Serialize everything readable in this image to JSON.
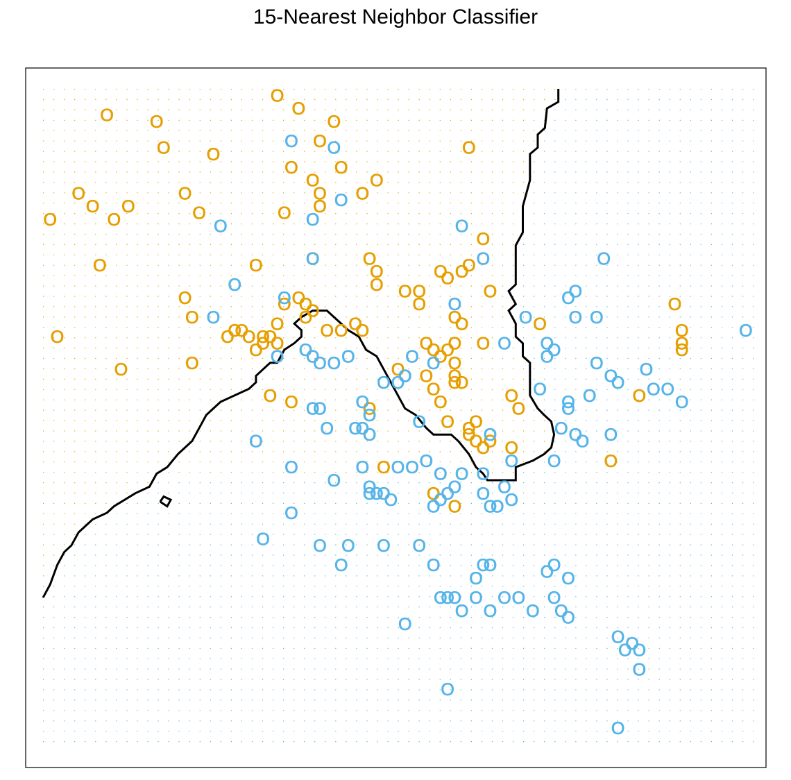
{
  "chart_data": {
    "type": "scatter",
    "title": "15-Nearest Neighbor Classifier",
    "xlabel": "",
    "ylabel": "",
    "axes_shown": false,
    "xlim": [
      0,
      1
    ],
    "ylim": [
      0,
      1
    ],
    "marker": "O",
    "colors": {
      "orange": "#E69F00",
      "blue": "#56B4E9",
      "boundary": "#000000",
      "frame": "#000000"
    },
    "background_grid": {
      "description": "dotted grid colored by predicted class",
      "nx": 69,
      "ny": 64
    },
    "decision_boundary": [
      [
        0.726,
        1.0
      ],
      [
        0.726,
        0.98
      ],
      [
        0.71,
        0.97
      ],
      [
        0.707,
        0.94
      ],
      [
        0.697,
        0.93
      ],
      [
        0.697,
        0.91
      ],
      [
        0.686,
        0.9
      ],
      [
        0.686,
        0.86
      ],
      [
        0.676,
        0.82
      ],
      [
        0.676,
        0.78
      ],
      [
        0.666,
        0.76
      ],
      [
        0.666,
        0.7
      ],
      [
        0.656,
        0.69
      ],
      [
        0.666,
        0.67
      ],
      [
        0.656,
        0.66
      ],
      [
        0.666,
        0.64
      ],
      [
        0.666,
        0.62
      ],
      [
        0.676,
        0.61
      ],
      [
        0.676,
        0.59
      ],
      [
        0.686,
        0.58
      ],
      [
        0.686,
        0.53
      ],
      [
        0.697,
        0.51
      ],
      [
        0.706,
        0.5
      ],
      [
        0.716,
        0.49
      ],
      [
        0.72,
        0.47
      ],
      [
        0.716,
        0.45
      ],
      [
        0.706,
        0.44
      ],
      [
        0.69,
        0.43
      ],
      [
        0.666,
        0.42
      ],
      [
        0.666,
        0.4
      ],
      [
        0.626,
        0.4
      ],
      [
        0.62,
        0.41
      ],
      [
        0.61,
        0.42
      ],
      [
        0.6,
        0.44
      ],
      [
        0.585,
        0.46
      ],
      [
        0.575,
        0.47
      ],
      [
        0.55,
        0.47
      ],
      [
        0.54,
        0.48
      ],
      [
        0.525,
        0.5
      ],
      [
        0.51,
        0.51
      ],
      [
        0.505,
        0.52
      ],
      [
        0.49,
        0.55
      ],
      [
        0.48,
        0.57
      ],
      [
        0.47,
        0.59
      ],
      [
        0.455,
        0.6
      ],
      [
        0.445,
        0.62
      ],
      [
        0.43,
        0.63
      ],
      [
        0.42,
        0.64
      ],
      [
        0.41,
        0.65
      ],
      [
        0.4,
        0.66
      ],
      [
        0.38,
        0.66
      ],
      [
        0.364,
        0.65
      ],
      [
        0.354,
        0.64
      ],
      [
        0.364,
        0.63
      ],
      [
        0.364,
        0.62
      ],
      [
        0.354,
        0.61
      ],
      [
        0.34,
        0.6
      ],
      [
        0.33,
        0.58
      ],
      [
        0.32,
        0.58
      ],
      [
        0.31,
        0.57
      ],
      [
        0.3,
        0.56
      ],
      [
        0.3,
        0.55
      ],
      [
        0.29,
        0.54
      ],
      [
        0.27,
        0.53
      ],
      [
        0.25,
        0.52
      ],
      [
        0.24,
        0.51
      ],
      [
        0.23,
        0.5
      ],
      [
        0.22,
        0.48
      ],
      [
        0.21,
        0.46
      ],
      [
        0.2,
        0.45
      ],
      [
        0.19,
        0.44
      ],
      [
        0.175,
        0.42
      ],
      [
        0.16,
        0.41
      ],
      [
        0.15,
        0.39
      ],
      [
        0.13,
        0.38
      ],
      [
        0.1,
        0.36
      ],
      [
        0.09,
        0.35
      ],
      [
        0.07,
        0.34
      ],
      [
        0.05,
        0.32
      ],
      [
        0.04,
        0.3
      ],
      [
        0.03,
        0.29
      ],
      [
        0.02,
        0.27
      ],
      [
        0.01,
        0.24
      ],
      [
        0.0,
        0.22
      ]
    ],
    "boundary_island": [
      [
        0.165,
        0.367
      ],
      [
        0.175,
        0.36
      ],
      [
        0.18,
        0.37
      ],
      [
        0.17,
        0.375
      ],
      [
        0.165,
        0.367
      ]
    ],
    "series": [
      {
        "name": "",
        "color": "orange",
        "points": [
          [
            0.33,
            0.99
          ],
          [
            0.36,
            0.97
          ],
          [
            0.09,
            0.96
          ],
          [
            0.16,
            0.95
          ],
          [
            0.41,
            0.95
          ],
          [
            0.17,
            0.91
          ],
          [
            0.24,
            0.9
          ],
          [
            0.39,
            0.92
          ],
          [
            0.6,
            0.91
          ],
          [
            0.35,
            0.88
          ],
          [
            0.42,
            0.88
          ],
          [
            0.38,
            0.86
          ],
          [
            0.05,
            0.84
          ],
          [
            0.2,
            0.84
          ],
          [
            0.07,
            0.82
          ],
          [
            0.12,
            0.82
          ],
          [
            0.22,
            0.81
          ],
          [
            0.01,
            0.8
          ],
          [
            0.1,
            0.8
          ],
          [
            0.34,
            0.81
          ],
          [
            0.39,
            0.84
          ],
          [
            0.39,
            0.82
          ],
          [
            0.45,
            0.84
          ],
          [
            0.47,
            0.86
          ],
          [
            0.38,
            0.74
          ],
          [
            0.08,
            0.73
          ],
          [
            0.3,
            0.73
          ],
          [
            0.46,
            0.74
          ],
          [
            0.47,
            0.72
          ],
          [
            0.47,
            0.7
          ],
          [
            0.62,
            0.77
          ],
          [
            0.56,
            0.72
          ],
          [
            0.59,
            0.72
          ],
          [
            0.51,
            0.69
          ],
          [
            0.53,
            0.69
          ],
          [
            0.53,
            0.67
          ],
          [
            0.57,
            0.71
          ],
          [
            0.6,
            0.73
          ],
          [
            0.2,
            0.68
          ],
          [
            0.34,
            0.67
          ],
          [
            0.36,
            0.68
          ],
          [
            0.37,
            0.67
          ],
          [
            0.21,
            0.65
          ],
          [
            0.37,
            0.65
          ],
          [
            0.38,
            0.66
          ],
          [
            0.33,
            0.64
          ],
          [
            0.4,
            0.63
          ],
          [
            0.44,
            0.64
          ],
          [
            0.42,
            0.63
          ],
          [
            0.45,
            0.63
          ],
          [
            0.63,
            0.69
          ],
          [
            0.58,
            0.65
          ],
          [
            0.59,
            0.64
          ],
          [
            0.02,
            0.62
          ],
          [
            0.26,
            0.62
          ],
          [
            0.27,
            0.63
          ],
          [
            0.28,
            0.63
          ],
          [
            0.29,
            0.62
          ],
          [
            0.31,
            0.62
          ],
          [
            0.32,
            0.62
          ],
          [
            0.31,
            0.61
          ],
          [
            0.33,
            0.61
          ],
          [
            0.3,
            0.6
          ],
          [
            0.21,
            0.58
          ],
          [
            0.11,
            0.57
          ],
          [
            0.54,
            0.61
          ],
          [
            0.55,
            0.6
          ],
          [
            0.56,
            0.59
          ],
          [
            0.58,
            0.58
          ],
          [
            0.57,
            0.6
          ],
          [
            0.58,
            0.56
          ],
          [
            0.58,
            0.55
          ],
          [
            0.54,
            0.56
          ],
          [
            0.58,
            0.61
          ],
          [
            0.62,
            0.61
          ],
          [
            0.66,
            0.53
          ],
          [
            0.67,
            0.51
          ],
          [
            0.55,
            0.54
          ],
          [
            0.32,
            0.53
          ],
          [
            0.35,
            0.52
          ],
          [
            0.5,
            0.57
          ],
          [
            0.59,
            0.55
          ],
          [
            0.56,
            0.52
          ],
          [
            0.61,
            0.49
          ],
          [
            0.6,
            0.48
          ],
          [
            0.6,
            0.47
          ],
          [
            0.63,
            0.46
          ],
          [
            0.62,
            0.45
          ],
          [
            0.61,
            0.46
          ],
          [
            0.66,
            0.45
          ],
          [
            0.57,
            0.49
          ],
          [
            0.46,
            0.51
          ],
          [
            0.48,
            0.42
          ],
          [
            0.55,
            0.38
          ],
          [
            0.58,
            0.36
          ],
          [
            0.7,
            0.64
          ],
          [
            0.89,
            0.67
          ],
          [
            0.9,
            0.63
          ],
          [
            0.9,
            0.61
          ],
          [
            0.9,
            0.6
          ],
          [
            0.84,
            0.53
          ],
          [
            0.8,
            0.43
          ]
        ]
      },
      {
        "name": "",
        "color": "blue",
        "points": [
          [
            0.35,
            0.92
          ],
          [
            0.41,
            0.91
          ],
          [
            0.42,
            0.83
          ],
          [
            0.38,
            0.8
          ],
          [
            0.25,
            0.79
          ],
          [
            0.59,
            0.79
          ],
          [
            0.38,
            0.74
          ],
          [
            0.62,
            0.74
          ],
          [
            0.27,
            0.7
          ],
          [
            0.34,
            0.68
          ],
          [
            0.24,
            0.65
          ],
          [
            0.58,
            0.67
          ],
          [
            0.79,
            0.74
          ],
          [
            0.75,
            0.69
          ],
          [
            0.74,
            0.68
          ],
          [
            0.68,
            0.65
          ],
          [
            0.75,
            0.65
          ],
          [
            0.78,
            0.65
          ],
          [
            0.99,
            0.63
          ],
          [
            0.65,
            0.61
          ],
          [
            0.71,
            0.61
          ],
          [
            0.71,
            0.59
          ],
          [
            0.72,
            0.6
          ],
          [
            0.78,
            0.58
          ],
          [
            0.8,
            0.56
          ],
          [
            0.81,
            0.55
          ],
          [
            0.7,
            0.54
          ],
          [
            0.9,
            0.52
          ],
          [
            0.73,
            0.48
          ],
          [
            0.75,
            0.47
          ],
          [
            0.72,
            0.43
          ],
          [
            0.33,
            0.59
          ],
          [
            0.37,
            0.6
          ],
          [
            0.38,
            0.59
          ],
          [
            0.39,
            0.58
          ],
          [
            0.41,
            0.58
          ],
          [
            0.43,
            0.59
          ],
          [
            0.48,
            0.55
          ],
          [
            0.5,
            0.55
          ],
          [
            0.51,
            0.56
          ],
          [
            0.52,
            0.59
          ],
          [
            0.55,
            0.58
          ],
          [
            0.51,
            0.56
          ],
          [
            0.39,
            0.51
          ],
          [
            0.38,
            0.51
          ],
          [
            0.45,
            0.52
          ],
          [
            0.46,
            0.5
          ],
          [
            0.45,
            0.48
          ],
          [
            0.46,
            0.47
          ],
          [
            0.53,
            0.49
          ],
          [
            0.44,
            0.48
          ],
          [
            0.3,
            0.46
          ],
          [
            0.4,
            0.48
          ],
          [
            0.35,
            0.42
          ],
          [
            0.45,
            0.42
          ],
          [
            0.5,
            0.42
          ],
          [
            0.46,
            0.39
          ],
          [
            0.47,
            0.38
          ],
          [
            0.48,
            0.38
          ],
          [
            0.46,
            0.38
          ],
          [
            0.49,
            0.37
          ],
          [
            0.52,
            0.42
          ],
          [
            0.54,
            0.43
          ],
          [
            0.56,
            0.41
          ],
          [
            0.58,
            0.39
          ],
          [
            0.57,
            0.38
          ],
          [
            0.55,
            0.36
          ],
          [
            0.56,
            0.37
          ],
          [
            0.59,
            0.41
          ],
          [
            0.62,
            0.41
          ],
          [
            0.65,
            0.39
          ],
          [
            0.64,
            0.36
          ],
          [
            0.63,
            0.36
          ],
          [
            0.35,
            0.35
          ],
          [
            0.31,
            0.31
          ],
          [
            0.39,
            0.3
          ],
          [
            0.43,
            0.3
          ],
          [
            0.48,
            0.3
          ],
          [
            0.53,
            0.3
          ],
          [
            0.42,
            0.27
          ],
          [
            0.55,
            0.27
          ],
          [
            0.62,
            0.27
          ],
          [
            0.63,
            0.27
          ],
          [
            0.72,
            0.27
          ],
          [
            0.71,
            0.26
          ],
          [
            0.74,
            0.25
          ],
          [
            0.61,
            0.22
          ],
          [
            0.57,
            0.22
          ],
          [
            0.58,
            0.22
          ],
          [
            0.56,
            0.22
          ],
          [
            0.61,
            0.25
          ],
          [
            0.72,
            0.22
          ],
          [
            0.59,
            0.2
          ],
          [
            0.65,
            0.22
          ],
          [
            0.67,
            0.22
          ],
          [
            0.69,
            0.2
          ],
          [
            0.73,
            0.2
          ],
          [
            0.74,
            0.19
          ],
          [
            0.63,
            0.2
          ],
          [
            0.51,
            0.18
          ],
          [
            0.81,
            0.16
          ],
          [
            0.83,
            0.15
          ],
          [
            0.84,
            0.14
          ],
          [
            0.82,
            0.14
          ],
          [
            0.84,
            0.11
          ],
          [
            0.57,
            0.08
          ],
          [
            0.81,
            0.02
          ],
          [
            0.63,
            0.47
          ],
          [
            0.66,
            0.43
          ],
          [
            0.62,
            0.38
          ],
          [
            0.66,
            0.37
          ],
          [
            0.74,
            0.51
          ],
          [
            0.74,
            0.52
          ],
          [
            0.85,
            0.57
          ],
          [
            0.86,
            0.54
          ],
          [
            0.77,
            0.53
          ],
          [
            0.76,
            0.46
          ],
          [
            0.8,
            0.47
          ],
          [
            0.88,
            0.54
          ],
          [
            0.41,
            0.4
          ]
        ]
      }
    ]
  }
}
